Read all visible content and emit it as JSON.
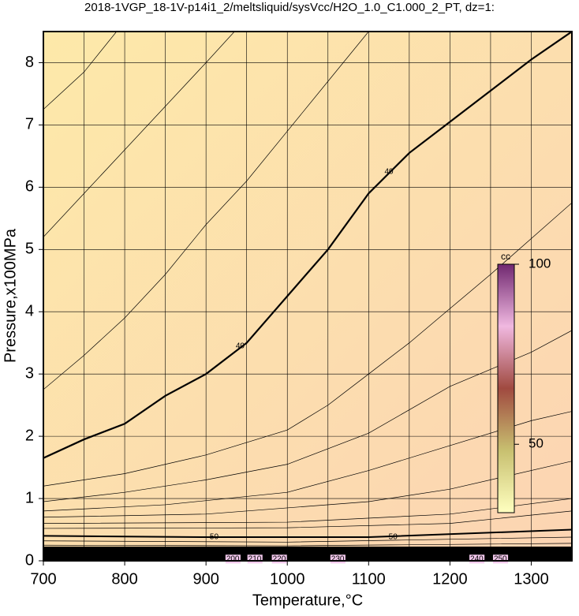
{
  "chart_data": {
    "type": "contour",
    "title": "2018-1VGP_18-1V-p14i1_2/meltsliquid/sysVcc/H2O_1.0_C1.000_2_PT, dz=1:",
    "x_label": "Temperature,°C",
    "y_label": "Pressure,x100MPa",
    "xlim": [
      700,
      1350
    ],
    "ylim": [
      0,
      8.5
    ],
    "xticks": [
      700,
      800,
      900,
      1000,
      1100,
      1200,
      1300
    ],
    "x_minor_ticks": [
      750,
      850,
      950,
      1050,
      1150,
      1250,
      1350
    ],
    "yticks": [
      0,
      1,
      2,
      3,
      4,
      5,
      6,
      7,
      8
    ],
    "grid": true,
    "line_color": "#000000",
    "series": [
      {
        "width": 2.2,
        "x": [
          700,
          750,
          800,
          850,
          900,
          950,
          1000,
          1050,
          1100,
          1150,
          1200,
          1250,
          1300,
          1350
        ],
        "y": [
          1.65,
          1.95,
          2.2,
          2.65,
          3.0,
          3.5,
          4.25,
          5.0,
          5.9,
          6.55,
          7.05,
          7.55,
          8.05,
          8.5
        ]
      },
      {
        "width": 0.7,
        "x": [
          700,
          750,
          790
        ],
        "y": [
          7.25,
          7.85,
          8.5
        ]
      },
      {
        "width": 0.7,
        "x": [
          700,
          750,
          800,
          850,
          900,
          935
        ],
        "y": [
          5.2,
          5.9,
          6.6,
          7.3,
          8.0,
          8.5
        ]
      },
      {
        "width": 0.7,
        "x": [
          700,
          750,
          800,
          850,
          900,
          950,
          1000,
          1050,
          1100
        ],
        "y": [
          2.75,
          3.3,
          3.9,
          4.6,
          5.4,
          6.1,
          6.9,
          7.7,
          8.5
        ]
      },
      {
        "width": 0.7,
        "x": [
          700,
          800,
          900,
          1000,
          1050,
          1100,
          1150,
          1200,
          1250,
          1350
        ],
        "y": [
          1.2,
          1.4,
          1.7,
          2.1,
          2.5,
          3.0,
          3.5,
          4.05,
          4.6,
          5.75
        ]
      },
      {
        "width": 0.7,
        "x": [
          700,
          800,
          900,
          1000,
          1100,
          1200,
          1300,
          1350
        ],
        "y": [
          0.95,
          1.1,
          1.3,
          1.55,
          2.05,
          2.8,
          3.35,
          3.7
        ]
      },
      {
        "width": 0.7,
        "x": [
          700,
          850,
          1000,
          1100,
          1200,
          1300,
          1350
        ],
        "y": [
          0.8,
          0.9,
          1.1,
          1.45,
          1.85,
          2.25,
          2.4
        ]
      },
      {
        "width": 0.7,
        "x": [
          700,
          900,
          1100,
          1200,
          1350
        ],
        "y": [
          0.7,
          0.75,
          0.95,
          1.15,
          1.6
        ]
      },
      {
        "width": 0.7,
        "x": [
          700,
          1000,
          1200,
          1350
        ],
        "y": [
          0.6,
          0.62,
          0.75,
          1.0
        ]
      },
      {
        "width": 0.7,
        "x": [
          700,
          1000,
          1200,
          1350
        ],
        "y": [
          0.52,
          0.53,
          0.6,
          0.8
        ]
      },
      {
        "width": 2.0,
        "x": [
          700,
          900,
          1100,
          1350
        ],
        "y": [
          0.4,
          0.38,
          0.38,
          0.5
        ]
      },
      {
        "width": 0.7,
        "x": [
          700,
          1000,
          1350
        ],
        "y": [
          0.32,
          0.3,
          0.38
        ]
      },
      {
        "width": 0.7,
        "x": [
          700,
          1000,
          1350
        ],
        "y": [
          0.25,
          0.24,
          0.28
        ]
      }
    ],
    "contour_labels": [
      {
        "text": "40",
        "x": 942,
        "y": 3.45
      },
      {
        "text": "40",
        "x": 1125,
        "y": 6.25
      },
      {
        "text": "50",
        "x": 910,
        "y": 0.38
      },
      {
        "text": "50",
        "x": 1130,
        "y": 0.38
      },
      {
        "text": "200",
        "x": 933,
        "y": 0.03
      },
      {
        "text": "210",
        "x": 960,
        "y": 0.03
      },
      {
        "text": "220",
        "x": 990,
        "y": 0.03
      },
      {
        "text": "230",
        "x": 1062,
        "y": 0.03
      },
      {
        "text": "240",
        "x": 1233,
        "y": 0.03
      },
      {
        "text": "250",
        "x": 1262,
        "y": 0.03
      }
    ],
    "colorbar": {
      "label": "cc",
      "lim": [
        31,
        100
      ],
      "ticks": [
        50,
        100
      ]
    }
  }
}
